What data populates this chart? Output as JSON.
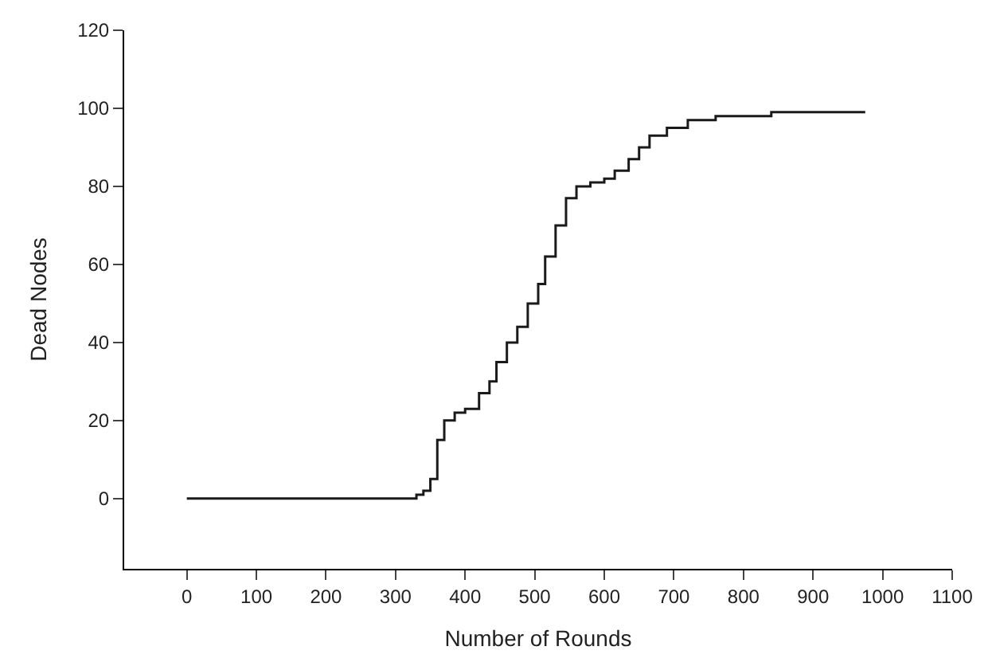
{
  "chart_data": {
    "type": "step",
    "xlabel": "Number of Rounds",
    "ylabel": "Dead Nodes",
    "x": [
      0,
      320,
      330,
      340,
      350,
      360,
      370,
      385,
      400,
      420,
      435,
      445,
      460,
      475,
      490,
      505,
      515,
      530,
      545,
      560,
      580,
      600,
      615,
      635,
      650,
      665,
      690,
      720,
      760,
      840,
      975
    ],
    "series": [
      {
        "color": "#1a1a1a",
        "values": [
          0,
          0,
          1,
          2,
          5,
          15,
          20,
          22,
          23,
          27,
          30,
          35,
          40,
          44,
          50,
          55,
          62,
          70,
          77,
          80,
          81,
          82,
          84,
          87,
          90,
          93,
          95,
          97,
          98,
          99,
          99
        ]
      }
    ],
    "xlim": [
      -90,
      1100
    ],
    "xticks": [
      0,
      100,
      200,
      300,
      400,
      500,
      600,
      700,
      800,
      900,
      1000,
      1100
    ],
    "ylim": [
      -18,
      120
    ],
    "yticks": [
      0,
      20,
      40,
      60,
      80,
      100,
      120
    ],
    "legend": false,
    "marker": "none"
  }
}
